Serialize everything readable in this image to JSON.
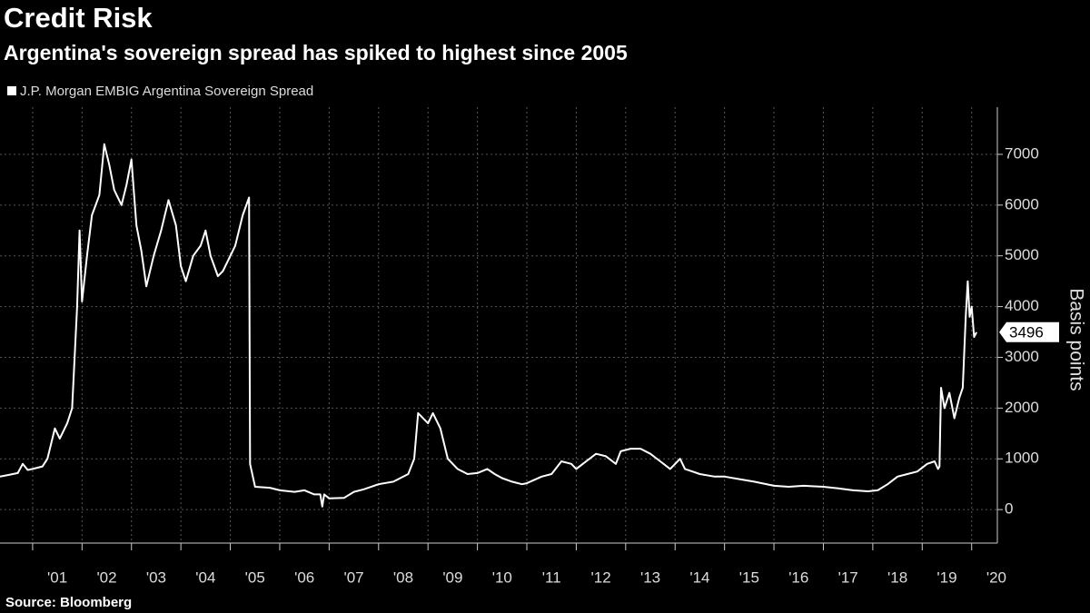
{
  "chart_data": {
    "type": "line",
    "title": "Credit Risk",
    "subtitle": "Argentina's sovereign spread has spiked to highest since 2005",
    "source": "Source: Bloomberg",
    "y_axis_label": "Basis points",
    "grid": true,
    "x": [
      2000.34,
      2000.5,
      2000.7,
      2000.8,
      2000.9,
      2001.0,
      2001.2,
      2001.3,
      2001.45,
      2001.55,
      2001.7,
      2001.8,
      2001.9,
      2001.95,
      2002.0,
      2002.1,
      2002.2,
      2002.35,
      2002.45,
      2002.55,
      2002.65,
      2002.8,
      2002.9,
      2003.0,
      2003.1,
      2003.2,
      2003.3,
      2003.45,
      2003.6,
      2003.75,
      2003.9,
      2004.0,
      2004.1,
      2004.25,
      2004.4,
      2004.5,
      2004.6,
      2004.75,
      2004.85,
      2005.0,
      2005.1,
      2005.25,
      2005.38,
      2005.4,
      2005.5,
      2005.8,
      2006.0,
      2006.3,
      2006.5,
      2006.7,
      2006.82,
      2006.86,
      2006.9,
      2007.0,
      2007.3,
      2007.5,
      2007.7,
      2008.0,
      2008.3,
      2008.6,
      2008.72,
      2008.8,
      2009.0,
      2009.1,
      2009.25,
      2009.4,
      2009.6,
      2009.8,
      2010.0,
      2010.2,
      2010.35,
      2010.5,
      2010.7,
      2010.9,
      2011.0,
      2011.3,
      2011.5,
      2011.7,
      2011.9,
      2012.0,
      2012.2,
      2012.4,
      2012.6,
      2012.8,
      2012.9,
      2013.1,
      2013.3,
      2013.5,
      2013.7,
      2013.9,
      2014.1,
      2014.2,
      2014.5,
      2014.8,
      2015.0,
      2015.3,
      2015.6,
      2016.0,
      2016.3,
      2016.6,
      2017.0,
      2017.3,
      2017.6,
      2017.9,
      2018.1,
      2018.3,
      2018.5,
      2018.7,
      2018.9,
      2019.1,
      2019.25,
      2019.32,
      2019.35,
      2019.38,
      2019.45,
      2019.55,
      2019.65,
      2019.75,
      2019.82,
      2019.88,
      2019.92,
      2019.96,
      2020.0,
      2020.05,
      2020.1
    ],
    "series": [
      {
        "name": "J.P. Morgan EMBIG Argentina Sovereign Spread",
        "color": "#ffffff",
        "values": [
          650,
          680,
          720,
          900,
          780,
          800,
          850,
          1000,
          1600,
          1400,
          1700,
          2000,
          4000,
          5500,
          4100,
          5000,
          5800,
          6200,
          7200,
          6800,
          6300,
          6000,
          6400,
          6900,
          5600,
          5100,
          4400,
          5000,
          5500,
          6100,
          5600,
          4800,
          4500,
          5000,
          5200,
          5500,
          5000,
          4600,
          4700,
          5000,
          5200,
          5800,
          6150,
          900,
          450,
          430,
          380,
          350,
          380,
          300,
          300,
          60,
          300,
          220,
          230,
          350,
          400,
          500,
          550,
          700,
          1000,
          1900,
          1700,
          1900,
          1600,
          1000,
          800,
          700,
          720,
          800,
          700,
          620,
          550,
          500,
          520,
          650,
          700,
          950,
          900,
          800,
          950,
          1100,
          1050,
          900,
          1150,
          1200,
          1200,
          1100,
          950,
          800,
          1000,
          800,
          700,
          650,
          650,
          600,
          550,
          470,
          450,
          470,
          450,
          420,
          380,
          360,
          380,
          500,
          650,
          700,
          750,
          900,
          950,
          800,
          850,
          2400,
          2000,
          2300,
          1800,
          2200,
          2400,
          3800,
          4500,
          3800,
          4000,
          3400,
          3496
        ]
      }
    ],
    "xlim": [
      2000.34,
      2020.52
    ],
    "xticks": [
      {
        "value": 2001,
        "label": "'01"
      },
      {
        "value": 2002,
        "label": "'02"
      },
      {
        "value": 2003,
        "label": "'03"
      },
      {
        "value": 2004,
        "label": "'04"
      },
      {
        "value": 2005,
        "label": "'05"
      },
      {
        "value": 2006,
        "label": "'06"
      },
      {
        "value": 2007,
        "label": "'07"
      },
      {
        "value": 2008,
        "label": "'08"
      },
      {
        "value": 2009,
        "label": "'09"
      },
      {
        "value": 2010,
        "label": "'10"
      },
      {
        "value": 2011,
        "label": "'11"
      },
      {
        "value": 2012,
        "label": "'12"
      },
      {
        "value": 2013,
        "label": "'13"
      },
      {
        "value": 2014,
        "label": "'14"
      },
      {
        "value": 2015,
        "label": "'15"
      },
      {
        "value": 2016,
        "label": "'16"
      },
      {
        "value": 2017,
        "label": "'17"
      },
      {
        "value": 2018,
        "label": "'18"
      },
      {
        "value": 2019,
        "label": "'19"
      },
      {
        "value": 2020,
        "label": "'20"
      }
    ],
    "ylim": [
      -660,
      7930
    ],
    "yticks": [
      0,
      1000,
      2000,
      3000,
      4000,
      5000,
      6000,
      7000
    ]
  }
}
